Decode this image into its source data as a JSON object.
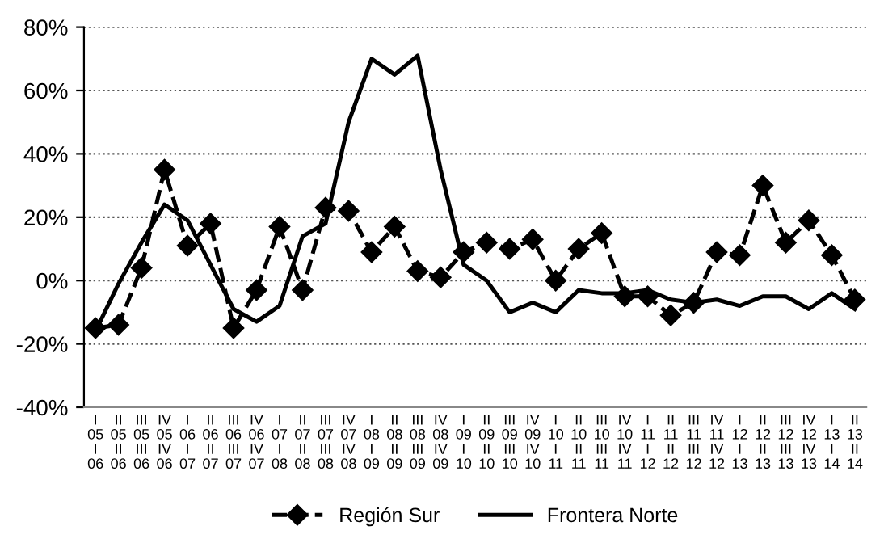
{
  "chart_data": {
    "type": "line",
    "categories": [
      "I\n05\nI\n06",
      "II\n05\nII\n06",
      "III\n05\nIII\n06",
      "IV\n05\nIV\n06",
      "I\n06\nI\n07",
      "II\n06\nII\n07",
      "III\n06\nIII\n07",
      "IV\n06\nIV\n07",
      "I\n07\nI\n08",
      "II\n07\nII\n08",
      "III\n07\nIII\n08",
      "IV\n07\nIV\n08",
      "I\n08\nI\n09",
      "II\n08\nII\n09",
      "III\n08\nIII\n09",
      "IV\n08\nIV\n09",
      "I\n09\nI\n10",
      "II\n09\nII\n10",
      "III\n09\nIII\n10",
      "IV\n09\nIV\n10",
      "I\n10\nI\n11",
      "II\n10\nII\n11",
      "III\n10\nIII\n11",
      "IV\n10\nIV\n11",
      "I\n11\nI\n12",
      "II\n11\nII\n12",
      "III\n11\nIII\n12",
      "IV\n11\nIV\n12",
      "I\n12\nI\n13",
      "II\n12\nII\n13",
      "III\n12\nIII\n13",
      "IV\n12\nIV\n13",
      "I\n13\nI\n14",
      "II\n13\nII\n14"
    ],
    "series": [
      {
        "name": "Región Sur",
        "color": "#000000",
        "marker": "diamond",
        "line_style": "dashed",
        "values": [
          -15,
          -14,
          4,
          35,
          11,
          18,
          -15,
          -3,
          17,
          -3,
          23,
          22,
          9,
          17,
          3,
          1,
          9,
          12,
          10,
          13,
          0,
          10,
          15,
          -5,
          -5,
          -11,
          -7,
          9,
          8,
          30,
          12,
          19,
          8,
          -6
        ]
      },
      {
        "name": "Frontera Norte",
        "color": "#000000",
        "marker": "none",
        "line_style": "solid",
        "values": [
          -16,
          -1,
          12,
          24,
          19,
          5,
          -9,
          -13,
          -8,
          14,
          18,
          50,
          70,
          65,
          71,
          35,
          5,
          0,
          -10,
          -7,
          -10,
          -3,
          -4,
          -4,
          -3,
          -6,
          -7,
          -6,
          -8,
          -5,
          -5,
          -9,
          -4,
          -9
        ]
      }
    ],
    "ylim": [
      -40,
      80
    ],
    "yticks": [
      {
        "value": -40,
        "label": "-40%"
      },
      {
        "value": -20,
        "label": "-20%"
      },
      {
        "value": 0,
        "label": "0%"
      },
      {
        "value": 20,
        "label": "20%"
      },
      {
        "value": 40,
        "label": "40%"
      },
      {
        "value": 60,
        "label": "60%"
      },
      {
        "value": 80,
        "label": "80%"
      }
    ],
    "grid": "y",
    "legend": "bottom"
  }
}
